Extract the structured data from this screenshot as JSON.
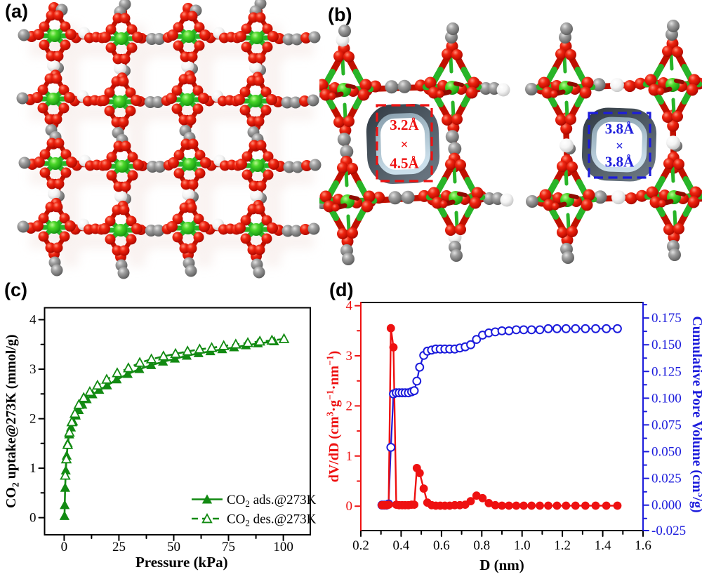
{
  "figure": {
    "background": "#ffffff",
    "panel_labels": {
      "a": "(a)",
      "b": "(b)",
      "c": "(c)",
      "d": "(d)"
    }
  },
  "colors": {
    "atom_oxygen_red": "#dd1604",
    "atom_metal_green": "#2fc42f",
    "atom_carbon_gray": "#8a8a8a",
    "atom_hydrogen_white": "#f4f4f4",
    "isotherm_green": "#128a12",
    "psd_red": "#ee1111",
    "cumulative_blue": "#1c1cdc",
    "pore_ring_dark": "#47525c",
    "pore_ring_light": "#b8cdda",
    "frame_black": "#000000"
  },
  "panel_b": {
    "pores": [
      {
        "line1": "3.2Å",
        "line2": "×",
        "line3": "4.5Å",
        "color": "#ee1111"
      },
      {
        "line1": "3.8Å",
        "line2": "×",
        "line3": "3.8Å",
        "color": "#1c1cdc"
      }
    ]
  },
  "chart_data": [
    {
      "panel": "c",
      "type": "line",
      "title": "",
      "xlabel": "Pressure (kPa)",
      "ylabel": "CO2 uptake@273K (mmol/g)",
      "xlim": [
        -9,
        112.3
      ],
      "ylim": [
        -0.35,
        4.24
      ],
      "xticks": [
        0,
        25,
        50,
        75,
        100
      ],
      "yticks": [
        0,
        1,
        2,
        3,
        4
      ],
      "x_minor_step": 12.5,
      "y_minor_step": 0.5,
      "grid": false,
      "legend_position": "lower right",
      "series": [
        {
          "name": "CO2 ads.@273K",
          "color": "#128a12",
          "marker": "triangle-filled",
          "line_style": "solid",
          "x": [
            0.15,
            0.25,
            0.45,
            0.75,
            1.15,
            1.65,
            2.3,
            3.1,
            4.1,
            5.3,
            6.7,
            8.3,
            10.3,
            12.9,
            16,
            19.6,
            24,
            29,
            34.3,
            39.7,
            45.1,
            50.5,
            55.9,
            61.3,
            66.7,
            72.1,
            77.5,
            82.9,
            88.4,
            95.8
          ],
          "y": [
            0.03,
            0.25,
            0.6,
            0.95,
            1.25,
            1.5,
            1.68,
            1.82,
            1.94,
            2.06,
            2.17,
            2.28,
            2.39,
            2.49,
            2.58,
            2.67,
            2.79,
            2.9,
            3.0,
            3.08,
            3.15,
            3.21,
            3.27,
            3.32,
            3.36,
            3.4,
            3.44,
            3.48,
            3.52,
            3.56
          ]
        },
        {
          "name": "CO2 des.@273K",
          "color": "#128a12",
          "marker": "triangle-open",
          "line_style": "dashed",
          "x": [
            100.3,
            94.8,
            89.3,
            83.8,
            78.3,
            72.8,
            67.3,
            61.8,
            56.3,
            50.8,
            45.3,
            39.8,
            34.5,
            29.3,
            24.2,
            19.4,
            15.2,
            11.7,
            8.9,
            6.7,
            4.9,
            3.5,
            2.4,
            1.6,
            1.0,
            0.5
          ],
          "y": [
            3.61,
            3.58,
            3.56,
            3.53,
            3.5,
            3.47,
            3.43,
            3.4,
            3.36,
            3.31,
            3.26,
            3.2,
            3.13,
            3.02,
            2.92,
            2.79,
            2.67,
            2.54,
            2.42,
            2.28,
            2.1,
            1.93,
            1.72,
            1.47,
            1.18,
            0.85
          ]
        }
      ]
    },
    {
      "panel": "d",
      "type": "line-dual-axis",
      "title": "",
      "xlabel": "D (nm)",
      "ylabel_left": "dV/dD (cm3·g-1·nm-1)",
      "ylabel_right": "Cumulative Pore Volume (cm3/g)",
      "xlim": [
        0.2,
        1.6
      ],
      "ylim_left": [
        -0.49,
        4.07
      ],
      "ylim_right": [
        -0.0268,
        0.1895
      ],
      "xticks": [
        0.2,
        0.4,
        0.6,
        0.8,
        1.0,
        1.2,
        1.4,
        1.6
      ],
      "yticks_left": [
        0,
        1,
        2,
        3,
        4
      ],
      "yticks_right": [
        -0.025,
        0.0,
        0.025,
        0.05,
        0.075,
        0.1,
        0.125,
        0.15,
        0.175
      ],
      "x_minor_step": 0.1,
      "y_minor_step_left": 0.5,
      "y_minor_step_right": 0.0125,
      "grid": false,
      "series": [
        {
          "name": "dV/dD",
          "axis": "left",
          "color": "#ee1111",
          "marker": "circle-filled",
          "line_style": "solid",
          "x": [
            0.305,
            0.316,
            0.327,
            0.338,
            0.349,
            0.362,
            0.376,
            0.39,
            0.405,
            0.42,
            0.436,
            0.452,
            0.465,
            0.478,
            0.492,
            0.512,
            0.53,
            0.551,
            0.572,
            0.594,
            0.617,
            0.641,
            0.666,
            0.691,
            0.718,
            0.745,
            0.774,
            0.804,
            0.835,
            0.867,
            0.9,
            0.935,
            0.971,
            1.008,
            1.047,
            1.088,
            1.13,
            1.173,
            1.218,
            1.265,
            1.314,
            1.365,
            1.418,
            1.473
          ],
          "y": [
            0.02,
            0.02,
            0.02,
            0.03,
            3.55,
            3.17,
            0.03,
            0.02,
            0.02,
            0.02,
            0.02,
            0.03,
            0.03,
            0.76,
            0.66,
            0.35,
            0.07,
            0.02,
            0.01,
            0.01,
            0.01,
            0.01,
            0.02,
            0.02,
            0.03,
            0.1,
            0.21,
            0.16,
            0.06,
            0.02,
            0.01,
            0.01,
            0.01,
            0.01,
            0.01,
            0.01,
            0.01,
            0.01,
            0.01,
            0.01,
            0.01,
            0.01,
            0.01,
            0.01
          ]
        },
        {
          "name": "Cumulative Pore Volume",
          "axis": "right",
          "color": "#1c1cdc",
          "marker": "circle-open",
          "line_style": "solid",
          "x": [
            0.305,
            0.316,
            0.327,
            0.338,
            0.349,
            0.362,
            0.376,
            0.39,
            0.405,
            0.42,
            0.436,
            0.452,
            0.465,
            0.478,
            0.492,
            0.512,
            0.53,
            0.551,
            0.572,
            0.594,
            0.617,
            0.641,
            0.666,
            0.691,
            0.718,
            0.745,
            0.774,
            0.804,
            0.835,
            0.867,
            0.9,
            0.935,
            0.971,
            1.008,
            1.047,
            1.088,
            1.13,
            1.173,
            1.218,
            1.265,
            1.314,
            1.365,
            1.418,
            1.473
          ],
          "y": [
            0.0,
            0.0,
            0.0,
            0.001,
            0.054,
            0.104,
            0.105,
            0.105,
            0.105,
            0.105,
            0.105,
            0.106,
            0.107,
            0.116,
            0.129,
            0.14,
            0.144,
            0.145,
            0.146,
            0.146,
            0.146,
            0.146,
            0.146,
            0.147,
            0.148,
            0.15,
            0.155,
            0.159,
            0.161,
            0.162,
            0.163,
            0.163,
            0.164,
            0.164,
            0.164,
            0.164,
            0.165,
            0.165,
            0.165,
            0.165,
            0.165,
            0.165,
            0.165,
            0.165
          ]
        }
      ]
    }
  ]
}
